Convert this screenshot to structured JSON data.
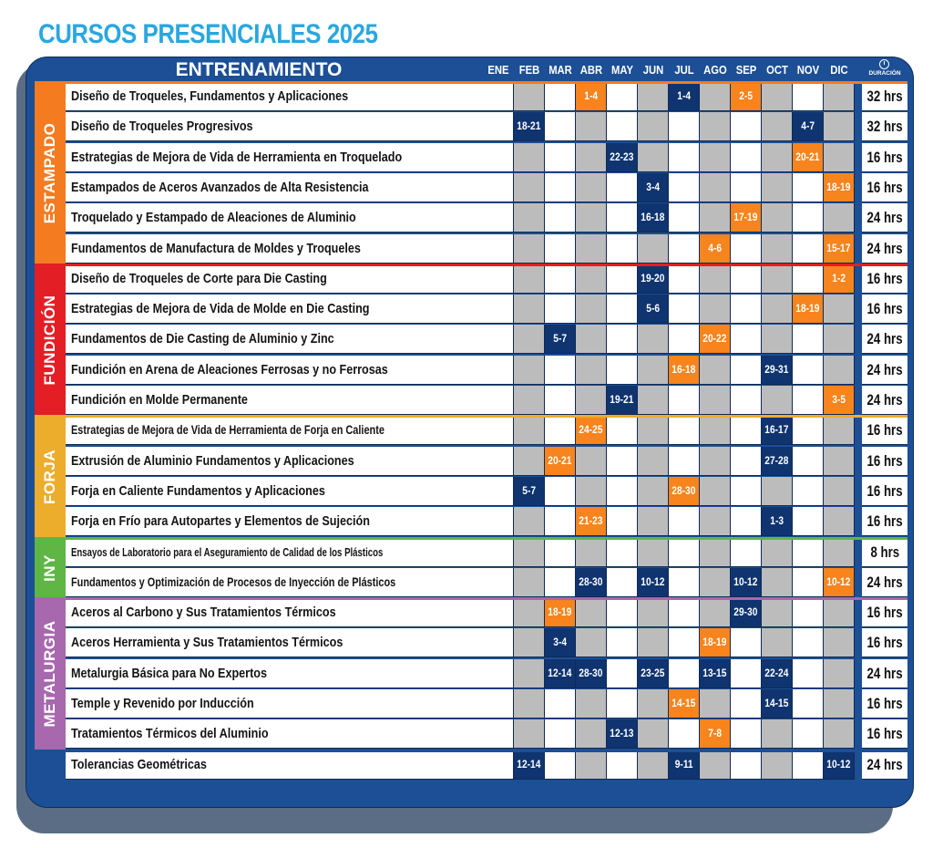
{
  "page": {
    "title": "CURSOS PRESENCIALES 2025"
  },
  "header": {
    "training_label": "ENTRENAMIENTO",
    "months": [
      "ENE",
      "FEB",
      "MAR",
      "ABR",
      "MAY",
      "JUN",
      "JUL",
      "AGO",
      "SEP",
      "OCT",
      "NOV",
      "DIC"
    ],
    "duration_label": "DURACIÓN"
  },
  "colors": {
    "title": "#29a7df",
    "panel": "#1c4f95",
    "shadow": "#5b6d84",
    "orange_date": "#f7841d",
    "navy_date": "#0f3470",
    "even_month": "#ffffff",
    "odd_month": "#bcbcbc",
    "estampado": "#f47b20",
    "fundicion": "#e31e25",
    "forja": "#ecad2d",
    "iny": "#5fb645",
    "metalurgia": "#a768ad",
    "otros": "#1c4f95"
  },
  "groups": [
    {
      "label": "ESTAMPADO",
      "color": "#f47b20",
      "courses": [
        {
          "title": "Diseño de Troqueles, Fundamentos y Aplicaciones",
          "duration": "32 hrs",
          "dates": [
            {
              "month": 3,
              "text": "1-4",
              "color": "orange"
            },
            {
              "month": 6,
              "text": "1-4",
              "color": "navy"
            },
            {
              "month": 8,
              "text": "2-5",
              "color": "orange"
            }
          ]
        },
        {
          "title": "Diseño de Troqueles Progresivos",
          "duration": "32 hrs",
          "dates": [
            {
              "month": 1,
              "text": "18-21",
              "color": "navy"
            },
            {
              "month": 10,
              "text": "4-7",
              "color": "navy"
            }
          ]
        },
        {
          "title": "Estrategias de Mejora de Vida de Herramienta en  Troquelado",
          "duration": "16 hrs",
          "dates": [
            {
              "month": 4,
              "text": "22-23",
              "color": "navy"
            },
            {
              "month": 10,
              "text": "20-21",
              "color": "orange"
            }
          ]
        },
        {
          "title": "Estampados de Aceros Avanzados de Alta Resistencia",
          "duration": "16 hrs",
          "dates": [
            {
              "month": 5,
              "text": "3-4",
              "color": "navy"
            },
            {
              "month": 11,
              "text": "18-19",
              "color": "orange"
            }
          ]
        },
        {
          "title": "Troquelado y Estampado de Aleaciones de Aluminio",
          "duration": "24 hrs",
          "dates": [
            {
              "month": 5,
              "text": "16-18",
              "color": "navy"
            },
            {
              "month": 8,
              "text": "17-19",
              "color": "orange"
            }
          ]
        },
        {
          "title": "Fundamentos de Manufactura de Moldes y Troqueles",
          "duration": "24 hrs",
          "dates": [
            {
              "month": 7,
              "text": "4-6",
              "color": "orange"
            },
            {
              "month": 11,
              "text": "15-17",
              "color": "orange"
            }
          ]
        }
      ]
    },
    {
      "label": "FUNDICIÓN",
      "color": "#e31e25",
      "courses": [
        {
          "title": "Diseño de Troqueles de Corte para Die Casting",
          "duration": "16 hrs",
          "dates": [
            {
              "month": 5,
              "text": "19-20",
              "color": "navy"
            },
            {
              "month": 11,
              "text": "1-2",
              "color": "orange"
            }
          ]
        },
        {
          "title": "Estrategias de Mejora de Vida de Molde en Die Casting",
          "duration": "16 hrs",
          "dates": [
            {
              "month": 5,
              "text": "5-6",
              "color": "navy"
            },
            {
              "month": 10,
              "text": "18-19",
              "color": "orange"
            }
          ]
        },
        {
          "title": "Fundamentos de Die Casting de Aluminio y Zinc",
          "duration": "24 hrs",
          "dates": [
            {
              "month": 2,
              "text": "5-7",
              "color": "navy"
            },
            {
              "month": 7,
              "text": "20-22",
              "color": "orange"
            }
          ]
        },
        {
          "title": "Fundición en Arena de Aleaciones Ferrosas y no Ferrosas",
          "duration": "24 hrs",
          "dates": [
            {
              "month": 6,
              "text": "16-18",
              "color": "orange"
            },
            {
              "month": 9,
              "text": "29-31",
              "color": "navy"
            }
          ]
        },
        {
          "title": "Fundición en Molde Permanente",
          "duration": "24 hrs",
          "dates": [
            {
              "month": 4,
              "text": "19-21",
              "color": "navy"
            },
            {
              "month": 11,
              "text": "3-5",
              "color": "orange"
            }
          ]
        }
      ]
    },
    {
      "label": "FORJA",
      "color": "#ecad2d",
      "courses": [
        {
          "title": "Estrategias de Mejora de Vida de Herramienta de Forja en Caliente",
          "duration": "16 hrs",
          "size": "small",
          "dates": [
            {
              "month": 3,
              "text": "24-25",
              "color": "orange"
            },
            {
              "month": 9,
              "text": "16-17",
              "color": "navy"
            }
          ]
        },
        {
          "title": "Extrusión de Aluminio Fundamentos y Aplicaciones",
          "duration": "16 hrs",
          "dates": [
            {
              "month": 2,
              "text": "20-21",
              "color": "orange"
            },
            {
              "month": 9,
              "text": "27-28",
              "color": "navy"
            }
          ]
        },
        {
          "title": "Forja en Caliente Fundamentos y Aplicaciones",
          "duration": "16 hrs",
          "dates": [
            {
              "month": 1,
              "text": "5-7",
              "color": "navy"
            },
            {
              "month": 6,
              "text": "28-30",
              "color": "orange"
            }
          ]
        },
        {
          "title": "Forja en Frío para Autopartes y Elementos de Sujeción",
          "duration": "16 hrs",
          "dates": [
            {
              "month": 3,
              "text": "21-23",
              "color": "orange"
            },
            {
              "month": 9,
              "text": "1-3",
              "color": "navy"
            }
          ]
        }
      ]
    },
    {
      "label": "INY",
      "color": "#5fb645",
      "courses": [
        {
          "title": "Ensayos de Laboratorio para el Aseguramiento de Calidad de los Plásticos",
          "duration": "8 hrs",
          "size": "tiny",
          "dates": []
        },
        {
          "title": "Fundamentos y Optimización de Procesos de Inyección de Plásticos",
          "duration": "24 hrs",
          "size": "small",
          "dates": [
            {
              "month": 3,
              "text": "28-30",
              "color": "navy"
            },
            {
              "month": 5,
              "text": "10-12",
              "color": "navy"
            },
            {
              "month": 8,
              "text": "10-12",
              "color": "navy"
            },
            {
              "month": 11,
              "text": "10-12",
              "color": "orange"
            }
          ]
        }
      ]
    },
    {
      "label": "METALURGIA",
      "color": "#a768ad",
      "courses": [
        {
          "title": "Aceros al Carbono y Sus Tratamientos Térmicos",
          "duration": "16 hrs",
          "dates": [
            {
              "month": 2,
              "text": "18-19",
              "color": "orange"
            },
            {
              "month": 8,
              "text": "29-30",
              "color": "navy"
            }
          ]
        },
        {
          "title": "Aceros Herramienta y Sus Tratamientos Térmicos",
          "duration": "16 hrs",
          "dates": [
            {
              "month": 2,
              "text": "3-4",
              "color": "navy"
            },
            {
              "month": 7,
              "text": "18-19",
              "color": "orange"
            }
          ]
        },
        {
          "title": "Metalurgia Básica para No Expertos",
          "duration": "24 hrs",
          "dates": [
            {
              "month": 2,
              "text": "12-14",
              "color": "navy"
            },
            {
              "month": 3,
              "text": "28-30",
              "color": "navy"
            },
            {
              "month": 5,
              "text": "23-25",
              "color": "navy"
            },
            {
              "month": 7,
              "text": "13-15",
              "color": "navy"
            },
            {
              "month": 9,
              "text": "22-24",
              "color": "navy"
            }
          ]
        },
        {
          "title": "Temple y Revenido por Inducción",
          "duration": "16 hrs",
          "dates": [
            {
              "month": 6,
              "text": "14-15",
              "color": "orange"
            },
            {
              "month": 9,
              "text": "14-15",
              "color": "navy"
            }
          ]
        },
        {
          "title": "Tratamientos Térmicos del Aluminio",
          "duration": "16 hrs",
          "dates": [
            {
              "month": 4,
              "text": "12-13",
              "color": "navy"
            },
            {
              "month": 7,
              "text": "7-8",
              "color": "orange"
            }
          ]
        }
      ]
    },
    {
      "label": "",
      "color": "#1c4f95",
      "courses": [
        {
          "title": "Tolerancias Geométricas",
          "duration": "24 hrs",
          "dates": [
            {
              "month": 1,
              "text": "12-14",
              "color": "navy"
            },
            {
              "month": 6,
              "text": "9-11",
              "color": "navy"
            },
            {
              "month": 11,
              "text": "10-12",
              "color": "navy"
            }
          ]
        }
      ]
    }
  ]
}
